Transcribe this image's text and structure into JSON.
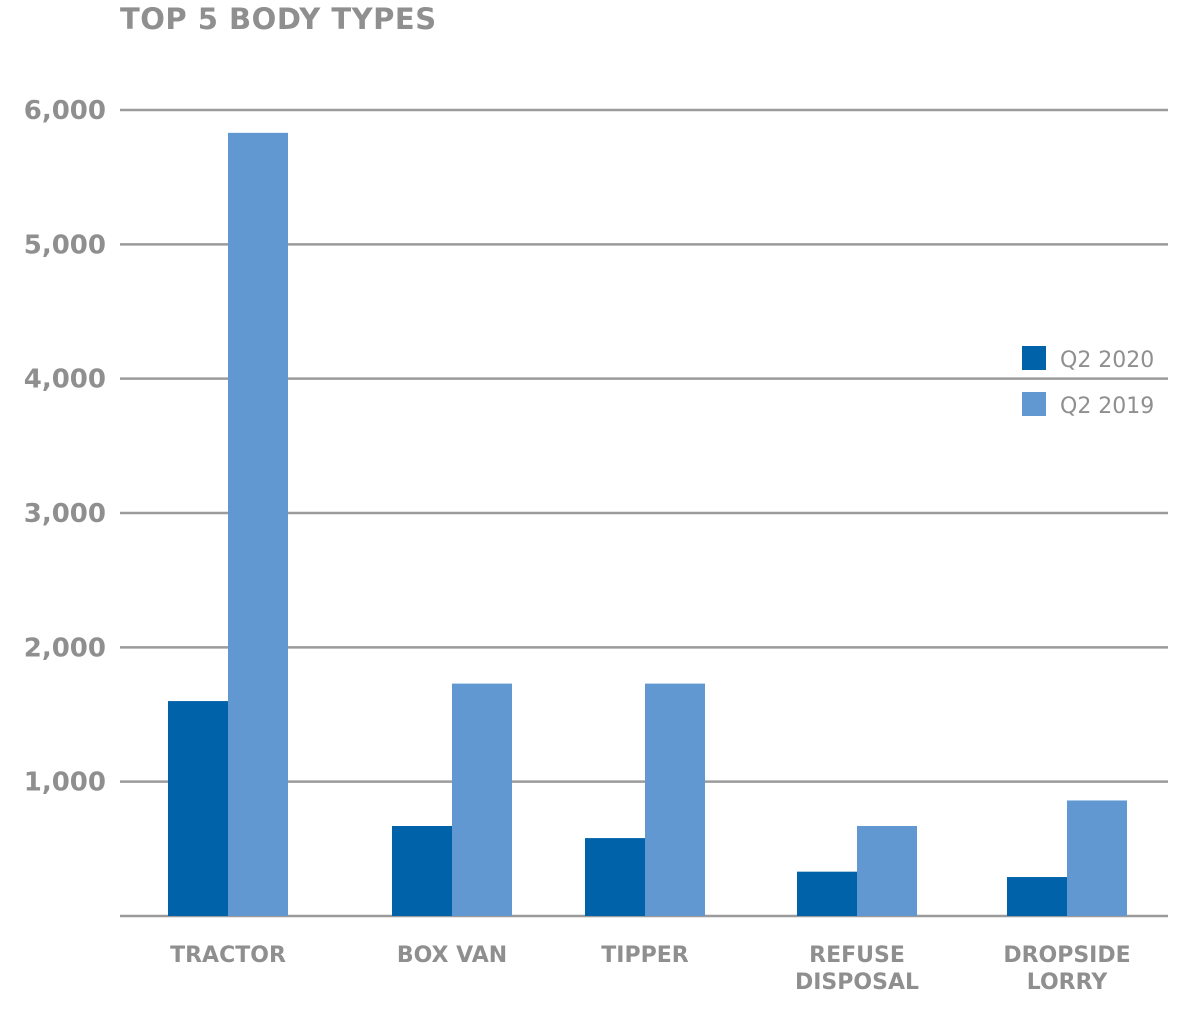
{
  "chart_data": {
    "type": "bar",
    "title": "TOP 5 BODY TYPES",
    "categories": [
      "TRACTOR",
      "BOX VAN",
      "TIPPER",
      "REFUSE DISPOSAL",
      "DROPSIDE LORRY"
    ],
    "category_lines": [
      [
        "TRACTOR"
      ],
      [
        "BOX VAN"
      ],
      [
        "TIPPER"
      ],
      [
        "REFUSE",
        "DISPOSAL"
      ],
      [
        "DROPSIDE",
        "LORRY"
      ]
    ],
    "series": [
      {
        "name": "Q2 2020",
        "color": "#0062a8",
        "values": [
          1600,
          670,
          580,
          330,
          290
        ]
      },
      {
        "name": "Q2 2019",
        "color": "#6298d2",
        "values": [
          5830,
          1730,
          1730,
          670,
          860
        ]
      }
    ],
    "yticks": [
      1000,
      2000,
      3000,
      4000,
      5000,
      6000
    ],
    "ytick_labels": [
      "1,000",
      "2,000",
      "3,000",
      "4,000",
      "5,000",
      "6,000"
    ],
    "ylim": [
      0,
      6000
    ],
    "xlabel": "",
    "ylabel": "",
    "grid": true,
    "legend": "right",
    "grid_color": "#9b9b9b"
  }
}
